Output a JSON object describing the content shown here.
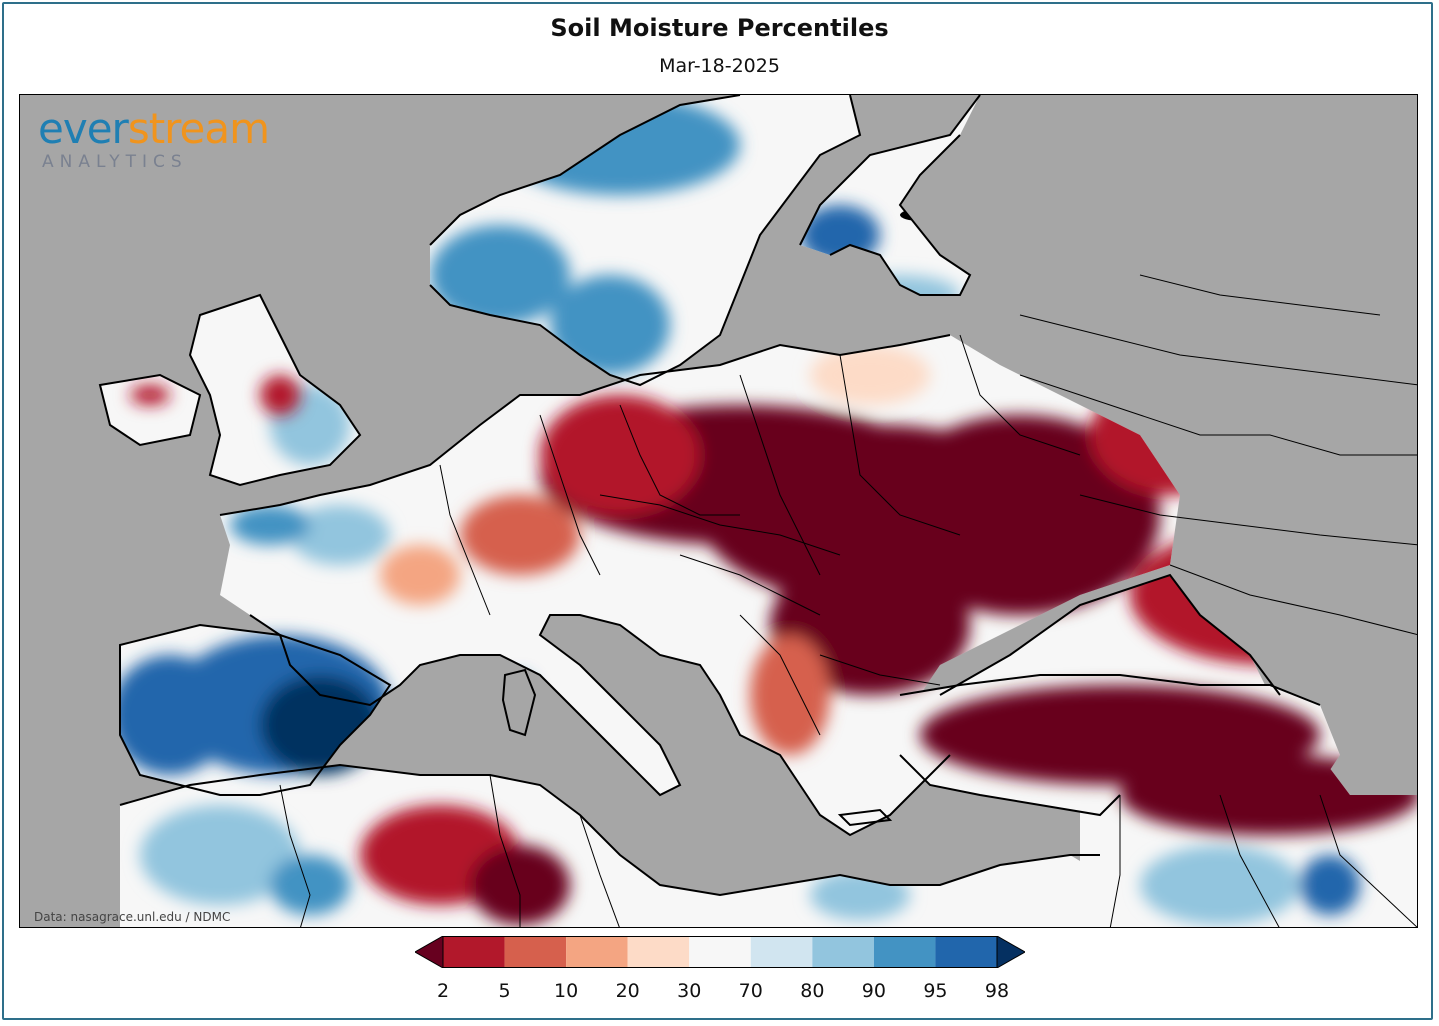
{
  "title": "Soil Moisture Percentiles",
  "date": "Mar-18-2025",
  "logo": {
    "word_part1": "ever",
    "word_part2": "stream",
    "sub": "ANALYTICS"
  },
  "credit": "Data: nasagrace.unl.edu / NDMC",
  "colors": {
    "land_default": "#f7f7f7",
    "sea": "#a6a6a6",
    "brand_blue": "#1f7fb3",
    "brand_orange": "#f0941d",
    "frame": "#2e6f8a"
  },
  "legend": {
    "ticks": [
      "2",
      "5",
      "10",
      "20",
      "30",
      "70",
      "80",
      "90",
      "95",
      "98"
    ],
    "bins": [
      {
        "color": "#b2182b"
      },
      {
        "color": "#d6604d"
      },
      {
        "color": "#f4a582"
      },
      {
        "color": "#fddbc7"
      },
      {
        "color": "#f7f7f7"
      },
      {
        "color": "#d1e5f0"
      },
      {
        "color": "#92c5de"
      },
      {
        "color": "#4393c3"
      },
      {
        "color": "#2166ac"
      }
    ],
    "under_color": "#67001f",
    "over_color": "#053061"
  }
}
